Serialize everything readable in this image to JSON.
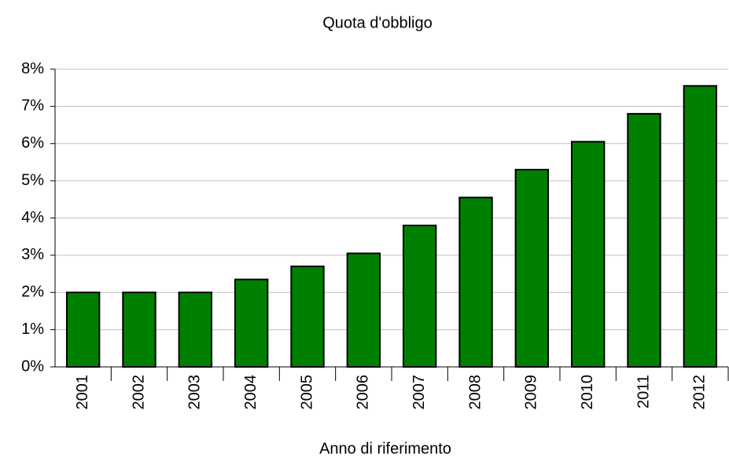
{
  "chart_data": {
    "type": "bar",
    "title": "Quota d'obbligo",
    "x_label": "Anno di riferimento",
    "categories": [
      "2001",
      "2002",
      "2003",
      "2004",
      "2005",
      "2006",
      "2007",
      "2008",
      "2009",
      "2010",
      "2011",
      "2012"
    ],
    "values": [
      2,
      2,
      2,
      2.35,
      2.7,
      3.05,
      3.8,
      4.55,
      5.3,
      6.05,
      6.8,
      7.55
    ],
    "color": "#008000",
    "ylim": [
      0,
      8
    ],
    "yticks": [
      {
        "value": 0,
        "label": "0%"
      },
      {
        "value": 1,
        "label": "1%"
      },
      {
        "value": 2,
        "label": "2%"
      },
      {
        "value": 3,
        "label": "3%"
      },
      {
        "value": 4,
        "label": "4%"
      },
      {
        "value": 5,
        "label": "5%"
      },
      {
        "value": 6,
        "label": "6%"
      },
      {
        "value": 7,
        "label": "7%"
      },
      {
        "value": 8,
        "label": "8%"
      }
    ],
    "grid": true
  }
}
